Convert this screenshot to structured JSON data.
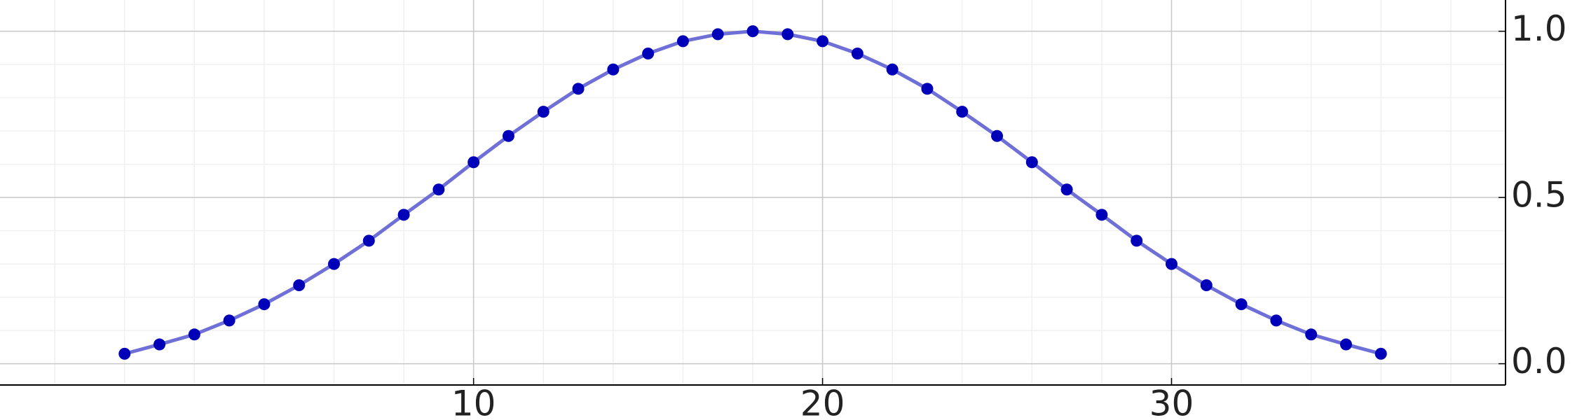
{
  "chart_data": {
    "type": "line",
    "x": [
      0,
      1,
      2,
      3,
      4,
      5,
      6,
      7,
      8,
      9,
      10,
      11,
      12,
      13,
      14,
      15,
      16,
      17,
      18,
      19,
      20,
      21,
      22,
      23,
      24,
      25,
      26,
      27,
      28,
      29,
      30,
      31,
      32,
      33,
      34,
      35,
      36
    ],
    "series": [
      {
        "line_color": "#6f6fd8",
        "color": "#0000b8",
        "values": [
          0.03,
          0.058,
          0.088,
          0.13,
          0.179,
          0.236,
          0.3,
          0.37,
          0.448,
          0.524,
          0.606,
          0.685,
          0.758,
          0.827,
          0.885,
          0.933,
          0.97,
          0.991,
          1.0,
          0.991,
          0.97,
          0.933,
          0.885,
          0.827,
          0.758,
          0.685,
          0.606,
          0.524,
          0.448,
          0.37,
          0.3,
          0.236,
          0.179,
          0.13,
          0.088,
          0.058,
          0.03
        ]
      }
    ],
    "xlim": [
      -3.57,
      39.57
    ],
    "xticks": [
      10,
      20,
      30
    ],
    "ylim": [
      -0.064,
      1.094
    ],
    "yticks": [
      {
        "value": 0,
        "label": "0.0"
      },
      {
        "value": 0.5,
        "label": "0.5"
      },
      {
        "value": 1,
        "label": "1.0"
      }
    ],
    "y_axis_side": "right",
    "grid": true,
    "minor_grid": true
  }
}
